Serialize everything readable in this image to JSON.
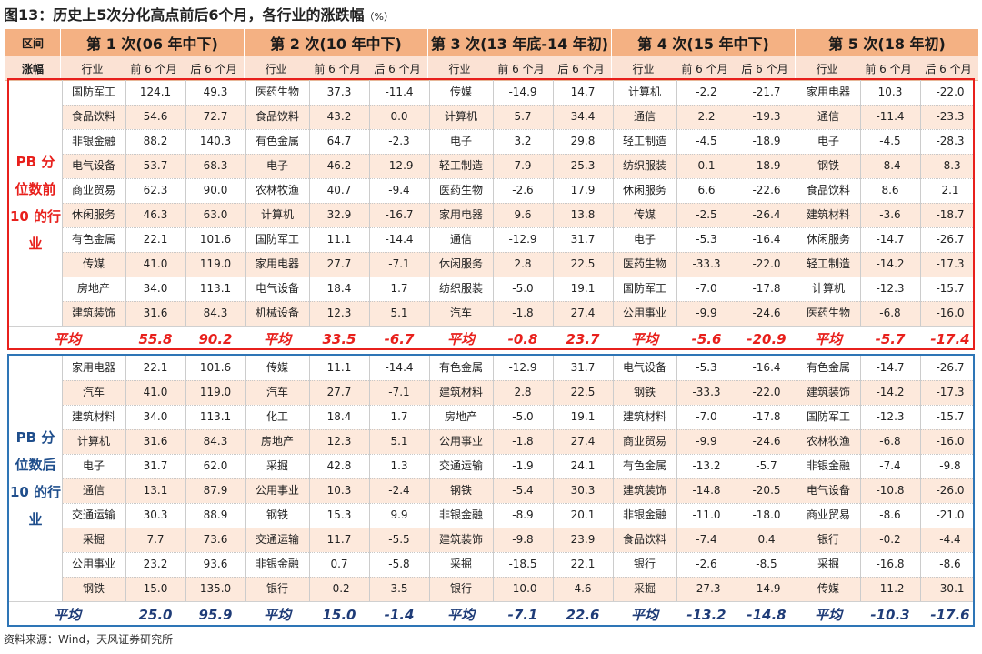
{
  "title": "图13：历史上5次分化高点前后6个月，各行业的涨跌幅",
  "title_unit": "（%）",
  "header": {
    "corner_top": "区间",
    "corner_bottom": "涨幅",
    "periods": [
      "第 1 次(06 年中下)",
      "第 2 次(10 年中下)",
      "第 3 次(13 年底-14 年初)",
      "第 4 次(15 年中下)",
      "第 5 次(18 年初)"
    ],
    "sub": [
      "行业",
      "前 6 个月",
      "后 6 个月"
    ]
  },
  "avg_label": "平均",
  "groups": [
    {
      "label": [
        "PB 分",
        "位数前",
        "10 的行",
        "业"
      ],
      "periods": [
        {
          "rows": [
            [
              "国防军工",
              "124.1",
              "49.3"
            ],
            [
              "食品饮料",
              "54.6",
              "72.7"
            ],
            [
              "非银金融",
              "88.2",
              "140.3"
            ],
            [
              "电气设备",
              "53.7",
              "68.3"
            ],
            [
              "商业贸易",
              "62.3",
              "90.0"
            ],
            [
              "休闲服务",
              "46.3",
              "63.0"
            ],
            [
              "有色金属",
              "22.1",
              "101.6"
            ],
            [
              "传媒",
              "41.0",
              "119.0"
            ],
            [
              "房地产",
              "34.0",
              "113.1"
            ],
            [
              "建筑装饰",
              "31.6",
              "84.3"
            ]
          ],
          "avg": [
            "55.8",
            "90.2"
          ]
        },
        {
          "rows": [
            [
              "医药生物",
              "37.3",
              "-11.4"
            ],
            [
              "食品饮料",
              "43.2",
              "0.0"
            ],
            [
              "有色金属",
              "64.7",
              "-2.3"
            ],
            [
              "电子",
              "46.2",
              "-12.9"
            ],
            [
              "农林牧渔",
              "40.7",
              "-9.4"
            ],
            [
              "计算机",
              "32.9",
              "-16.7"
            ],
            [
              "国防军工",
              "11.1",
              "-14.4"
            ],
            [
              "家用电器",
              "27.7",
              "-7.1"
            ],
            [
              "电气设备",
              "18.4",
              "1.7"
            ],
            [
              "机械设备",
              "12.3",
              "5.1"
            ]
          ],
          "avg": [
            "33.5",
            "-6.7"
          ]
        },
        {
          "rows": [
            [
              "传媒",
              "-14.9",
              "14.7"
            ],
            [
              "计算机",
              "5.7",
              "34.4"
            ],
            [
              "电子",
              "3.2",
              "29.8"
            ],
            [
              "轻工制造",
              "7.9",
              "25.3"
            ],
            [
              "医药生物",
              "-2.6",
              "17.9"
            ],
            [
              "家用电器",
              "9.6",
              "13.8"
            ],
            [
              "通信",
              "-12.9",
              "31.7"
            ],
            [
              "休闲服务",
              "2.8",
              "22.5"
            ],
            [
              "纺织服装",
              "-5.0",
              "19.1"
            ],
            [
              "汽车",
              "-1.8",
              "27.4"
            ]
          ],
          "avg": [
            "-0.8",
            "23.7"
          ]
        },
        {
          "rows": [
            [
              "计算机",
              "-2.2",
              "-21.7"
            ],
            [
              "通信",
              "2.2",
              "-19.3"
            ],
            [
              "轻工制造",
              "-4.5",
              "-18.9"
            ],
            [
              "纺织服装",
              "0.1",
              "-18.9"
            ],
            [
              "休闲服务",
              "6.6",
              "-22.6"
            ],
            [
              "传媒",
              "-2.5",
              "-26.4"
            ],
            [
              "电子",
              "-5.3",
              "-16.4"
            ],
            [
              "医药生物",
              "-33.3",
              "-22.0"
            ],
            [
              "国防军工",
              "-7.0",
              "-17.8"
            ],
            [
              "公用事业",
              "-9.9",
              "-24.6"
            ]
          ],
          "avg": [
            "-5.6",
            "-20.9"
          ]
        },
        {
          "rows": [
            [
              "家用电器",
              "10.3",
              "-22.0"
            ],
            [
              "通信",
              "-11.4",
              "-23.3"
            ],
            [
              "电子",
              "-4.5",
              "-28.3"
            ],
            [
              "钢铁",
              "-8.4",
              "-8.3"
            ],
            [
              "食品饮料",
              "8.6",
              "2.1"
            ],
            [
              "建筑材料",
              "-3.6",
              "-18.7"
            ],
            [
              "休闲服务",
              "-14.7",
              "-26.7"
            ],
            [
              "轻工制造",
              "-14.2",
              "-17.3"
            ],
            [
              "计算机",
              "-12.3",
              "-15.7"
            ],
            [
              "医药生物",
              "-6.8",
              "-16.0"
            ]
          ],
          "avg": [
            "-5.7",
            "-17.4"
          ]
        }
      ]
    },
    {
      "label": [
        "PB 分",
        "位数后",
        "10 的行",
        "业"
      ],
      "periods": [
        {
          "rows": [
            [
              "家用电器",
              "22.1",
              "101.6"
            ],
            [
              "汽车",
              "41.0",
              "119.0"
            ],
            [
              "建筑材料",
              "34.0",
              "113.1"
            ],
            [
              "计算机",
              "31.6",
              "84.3"
            ],
            [
              "电子",
              "31.7",
              "62.0"
            ],
            [
              "通信",
              "13.1",
              "87.9"
            ],
            [
              "交通运输",
              "30.3",
              "88.9"
            ],
            [
              "采掘",
              "7.7",
              "73.6"
            ],
            [
              "公用事业",
              "23.2",
              "93.6"
            ],
            [
              "钢铁",
              "15.0",
              "135.0"
            ]
          ],
          "avg": [
            "25.0",
            "95.9"
          ]
        },
        {
          "rows": [
            [
              "传媒",
              "11.1",
              "-14.4"
            ],
            [
              "汽车",
              "27.7",
              "-7.1"
            ],
            [
              "化工",
              "18.4",
              "1.7"
            ],
            [
              "房地产",
              "12.3",
              "5.1"
            ],
            [
              "采掘",
              "42.8",
              "1.3"
            ],
            [
              "公用事业",
              "10.3",
              "-2.4"
            ],
            [
              "钢铁",
              "15.3",
              "9.9"
            ],
            [
              "交通运输",
              "11.7",
              "-5.5"
            ],
            [
              "非银金融",
              "0.7",
              "-5.8"
            ],
            [
              "银行",
              "-0.2",
              "3.5"
            ]
          ],
          "avg": [
            "15.0",
            "-1.4"
          ]
        },
        {
          "rows": [
            [
              "有色金属",
              "-12.9",
              "31.7"
            ],
            [
              "建筑材料",
              "2.8",
              "22.5"
            ],
            [
              "房地产",
              "-5.0",
              "19.1"
            ],
            [
              "公用事业",
              "-1.8",
              "27.4"
            ],
            [
              "交通运输",
              "-1.9",
              "24.1"
            ],
            [
              "钢铁",
              "-5.4",
              "30.3"
            ],
            [
              "非银金融",
              "-8.9",
              "20.1"
            ],
            [
              "建筑装饰",
              "-9.8",
              "23.9"
            ],
            [
              "采掘",
              "-18.5",
              "22.1"
            ],
            [
              "银行",
              "-10.0",
              "4.6"
            ]
          ],
          "avg": [
            "-7.1",
            "22.6"
          ]
        },
        {
          "rows": [
            [
              "电气设备",
              "-5.3",
              "-16.4"
            ],
            [
              "钢铁",
              "-33.3",
              "-22.0"
            ],
            [
              "建筑材料",
              "-7.0",
              "-17.8"
            ],
            [
              "商业贸易",
              "-9.9",
              "-24.6"
            ],
            [
              "有色金属",
              "-13.2",
              "-5.7"
            ],
            [
              "建筑装饰",
              "-14.8",
              "-20.5"
            ],
            [
              "非银金融",
              "-11.0",
              "-18.0"
            ],
            [
              "食品饮料",
              "-7.4",
              "0.4"
            ],
            [
              "银行",
              "-2.6",
              "-8.5"
            ],
            [
              "采掘",
              "-27.3",
              "-14.9"
            ]
          ],
          "avg": [
            "-13.2",
            "-14.8"
          ]
        },
        {
          "rows": [
            [
              "有色金属",
              "-14.7",
              "-26.7"
            ],
            [
              "建筑装饰",
              "-14.2",
              "-17.3"
            ],
            [
              "国防军工",
              "-12.3",
              "-15.7"
            ],
            [
              "农林牧渔",
              "-6.8",
              "-16.0"
            ],
            [
              "非银金融",
              "-7.4",
              "-9.8"
            ],
            [
              "电气设备",
              "-10.8",
              "-26.0"
            ],
            [
              "商业贸易",
              "-8.6",
              "-21.0"
            ],
            [
              "银行",
              "-0.2",
              "-4.4"
            ],
            [
              "采掘",
              "-16.8",
              "-8.6"
            ],
            [
              "传媒",
              "-11.2",
              "-30.1"
            ]
          ],
          "avg": [
            "-10.3",
            "-17.6"
          ]
        }
      ]
    }
  ],
  "colors": {
    "header": "#f4b183",
    "subheader": "#fbe2d4",
    "stripe": "#fde9dc",
    "top_border": "#e8201c",
    "bottom_border": "#2e75b6"
  },
  "source": "资料来源：Wind，天风证券研究所"
}
